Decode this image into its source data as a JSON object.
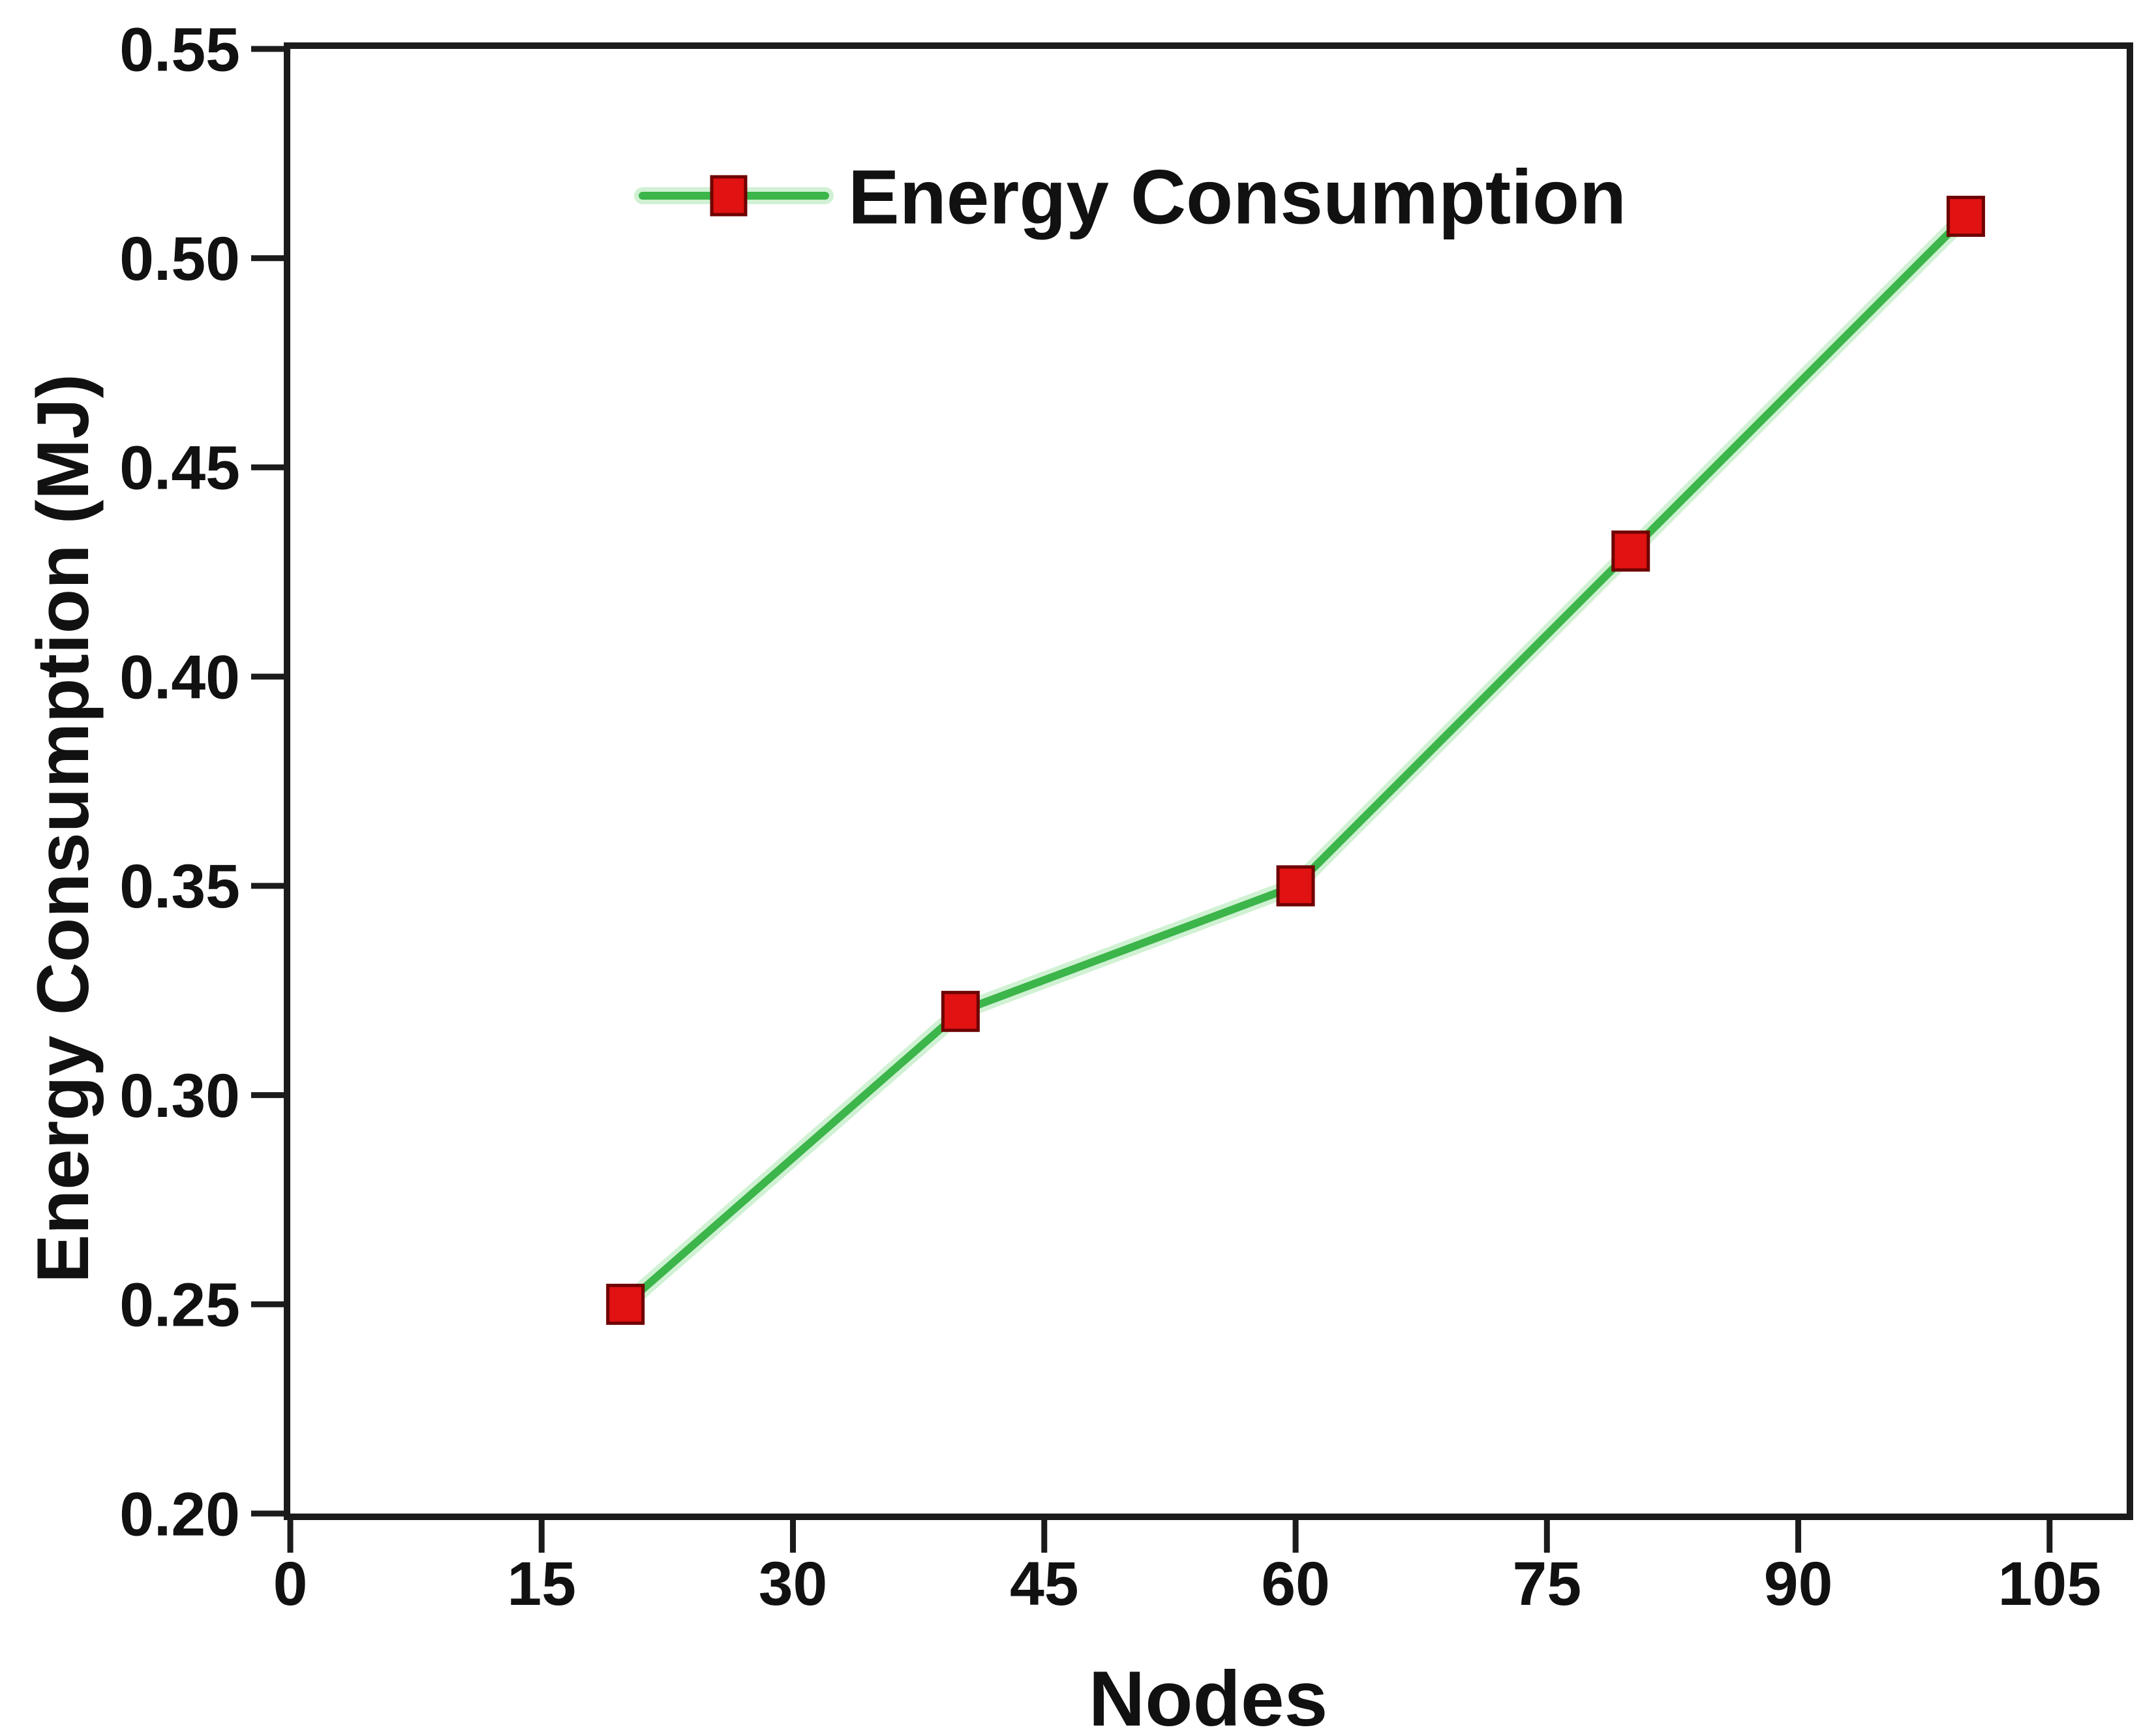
{
  "chart_data": {
    "type": "line",
    "title": "",
    "xlabel": "Nodes",
    "ylabel": "Energy Consumption (MJ)",
    "series": [
      {
        "name": "Energy Consumption",
        "x": [
          20,
          40,
          60,
          80,
          100
        ],
        "y": [
          0.25,
          0.32,
          0.35,
          0.43,
          0.51
        ],
        "line_color": "#3CB54A",
        "line_glow_color": "#A9E5AF",
        "marker": "square",
        "marker_fill": "#E01212",
        "marker_edge": "#6E0303"
      }
    ],
    "xlim": [
      0,
      109.6
    ],
    "ylim": [
      0.2,
      0.55
    ],
    "xticks": [
      0,
      15,
      30,
      45,
      60,
      75,
      90,
      105
    ],
    "yticks": [
      0.2,
      0.25,
      0.3,
      0.35,
      0.4,
      0.45,
      0.5,
      0.55
    ],
    "y_tick_decimals": 2,
    "grid": false,
    "legend_position": "top-center",
    "axis_color": "#1B1B1B",
    "text_color": "#111111",
    "background": "#FFFFFF"
  }
}
